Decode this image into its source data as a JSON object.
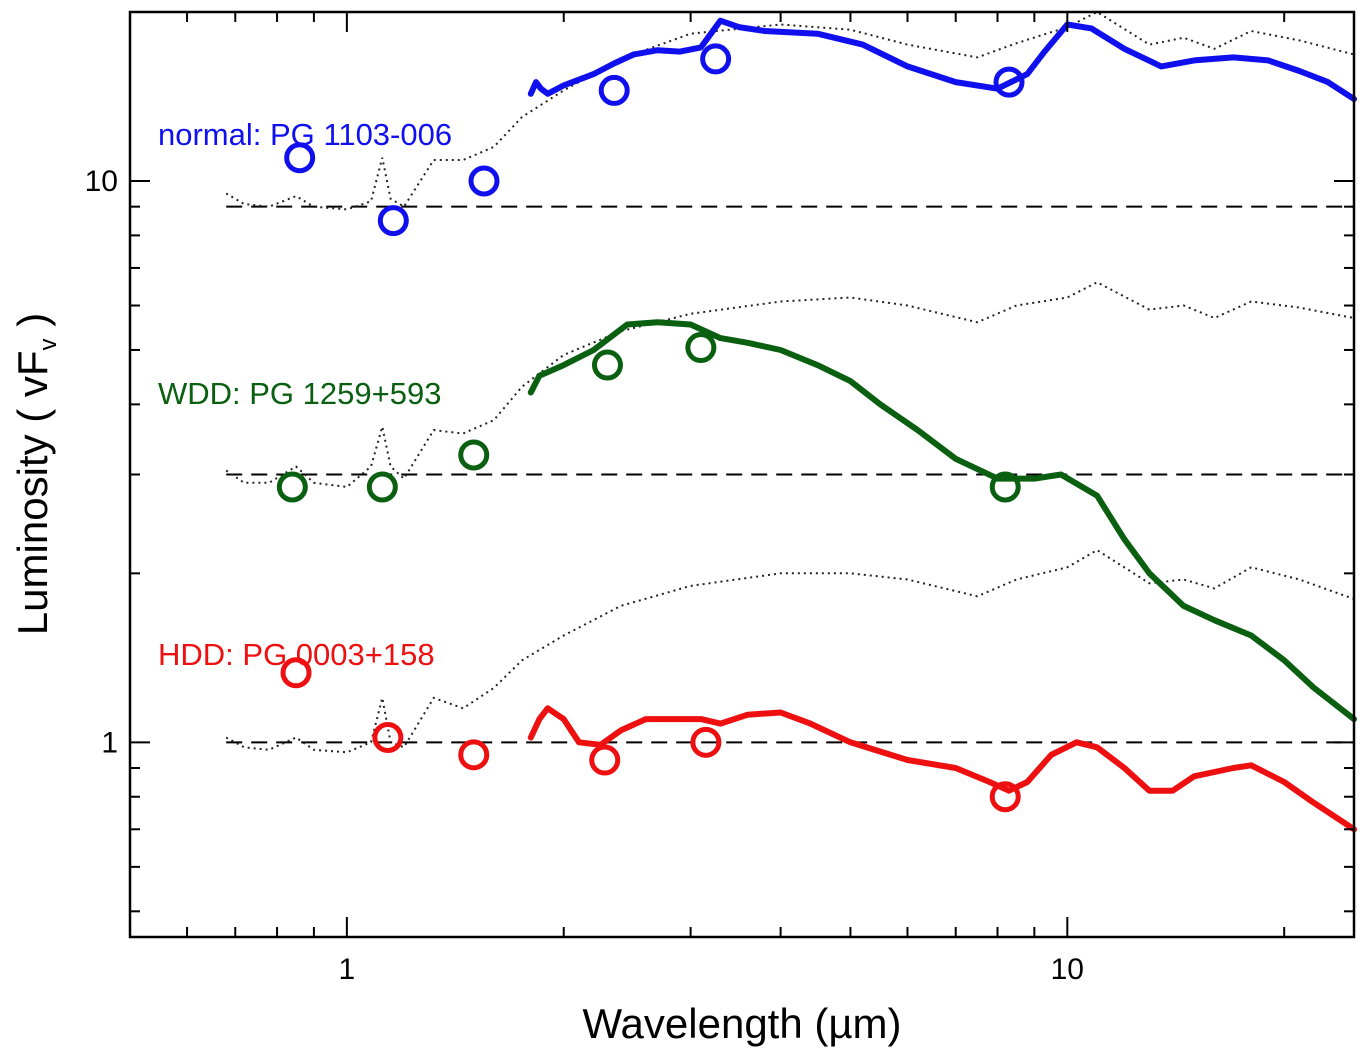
{
  "chart_data": {
    "type": "line",
    "xscale": "log",
    "yscale": "log",
    "xlim": [
      0.5,
      25
    ],
    "ylim": [
      0.45,
      20
    ],
    "xlabel": "Wavelength (µm)",
    "ylabel_main": "Luminosity ( vF",
    "ylabel_sub": "v",
    "ylabel_close": " )",
    "x_ticks": [
      {
        "value": 1,
        "label": "1"
      },
      {
        "value": 10,
        "label": "10"
      }
    ],
    "y_ticks": [
      {
        "value": 1,
        "label": "1"
      },
      {
        "value": 10,
        "label": "10"
      }
    ],
    "series": [
      {
        "name": "normal: PG 1103-006",
        "color": "#1010ee",
        "reference_level": 9.0,
        "photometry": [
          [
            0.86,
            11.0
          ],
          [
            1.16,
            8.5
          ],
          [
            1.55,
            10.0
          ],
          [
            2.35,
            14.5
          ],
          [
            3.25,
            16.5
          ],
          [
            8.3,
            15.0
          ]
        ],
        "spectrum": [
          [
            1.8,
            14.3
          ],
          [
            1.83,
            15.0
          ],
          [
            1.86,
            14.6
          ],
          [
            1.9,
            14.3
          ],
          [
            2.0,
            14.8
          ],
          [
            2.2,
            15.5
          ],
          [
            2.35,
            16.2
          ],
          [
            2.5,
            16.8
          ],
          [
            2.7,
            17.1
          ],
          [
            2.9,
            17.0
          ],
          [
            3.1,
            17.3
          ],
          [
            3.3,
            19.3
          ],
          [
            3.5,
            18.8
          ],
          [
            3.8,
            18.5
          ],
          [
            4.5,
            18.3
          ],
          [
            5.2,
            17.5
          ],
          [
            6.0,
            16.0
          ],
          [
            7.0,
            15.0
          ],
          [
            8.0,
            14.6
          ],
          [
            8.8,
            15.5
          ],
          [
            9.3,
            17.0
          ],
          [
            10.0,
            19.0
          ],
          [
            10.8,
            18.7
          ],
          [
            12.0,
            17.2
          ],
          [
            13.5,
            16.0
          ],
          [
            15.0,
            16.4
          ],
          [
            17.0,
            16.6
          ],
          [
            19.0,
            16.4
          ],
          [
            21.0,
            15.7
          ],
          [
            23.0,
            15.0
          ],
          [
            25.0,
            14.0
          ]
        ],
        "template": [
          [
            0.68,
            9.5
          ],
          [
            0.72,
            9.1
          ],
          [
            0.78,
            9.0
          ],
          [
            0.85,
            9.4
          ],
          [
            0.9,
            9.0
          ],
          [
            1.0,
            8.9
          ],
          [
            1.08,
            9.2
          ],
          [
            1.12,
            11.0
          ],
          [
            1.15,
            9.3
          ],
          [
            1.2,
            9.0
          ],
          [
            1.32,
            10.9
          ],
          [
            1.45,
            10.9
          ],
          [
            1.6,
            11.5
          ],
          [
            1.75,
            13.0
          ],
          [
            2.0,
            14.5
          ],
          [
            2.4,
            16.5
          ],
          [
            3.0,
            18.3
          ],
          [
            4.0,
            19.0
          ],
          [
            5.0,
            18.6
          ],
          [
            6.0,
            17.5
          ],
          [
            7.5,
            16.6
          ],
          [
            8.5,
            17.6
          ],
          [
            10.0,
            18.8
          ],
          [
            11.0,
            20.0
          ],
          [
            13.0,
            17.5
          ],
          [
            14.5,
            18.0
          ],
          [
            16.0,
            17.2
          ],
          [
            18.0,
            18.5
          ],
          [
            21.0,
            17.8
          ],
          [
            25.0,
            16.8
          ]
        ]
      },
      {
        "name": "WDD: PG 1259+593",
        "color": "#0a6010",
        "reference_level": 3.0,
        "photometry": [
          [
            0.84,
            2.85
          ],
          [
            1.12,
            2.85
          ],
          [
            1.5,
            3.25
          ],
          [
            2.3,
            4.7
          ],
          [
            3.1,
            5.05
          ],
          [
            8.2,
            2.85
          ]
        ],
        "spectrum": [
          [
            1.8,
            4.2
          ],
          [
            1.85,
            4.5
          ],
          [
            2.0,
            4.7
          ],
          [
            2.2,
            5.0
          ],
          [
            2.45,
            5.55
          ],
          [
            2.7,
            5.6
          ],
          [
            3.0,
            5.55
          ],
          [
            3.3,
            5.25
          ],
          [
            3.6,
            5.15
          ],
          [
            4.0,
            5.0
          ],
          [
            4.5,
            4.7
          ],
          [
            5.0,
            4.4
          ],
          [
            5.5,
            4.0
          ],
          [
            6.2,
            3.6
          ],
          [
            7.0,
            3.2
          ],
          [
            8.0,
            2.95
          ],
          [
            9.0,
            2.95
          ],
          [
            9.8,
            3.0
          ],
          [
            11.0,
            2.75
          ],
          [
            12.0,
            2.3
          ],
          [
            13.0,
            2.0
          ],
          [
            14.5,
            1.75
          ],
          [
            16.0,
            1.65
          ],
          [
            18.0,
            1.55
          ],
          [
            20.0,
            1.4
          ],
          [
            22.0,
            1.25
          ],
          [
            25.0,
            1.1
          ]
        ],
        "template": [
          [
            0.68,
            3.05
          ],
          [
            0.72,
            2.9
          ],
          [
            0.78,
            2.9
          ],
          [
            0.85,
            3.1
          ],
          [
            0.9,
            2.9
          ],
          [
            1.0,
            2.85
          ],
          [
            1.08,
            3.1
          ],
          [
            1.12,
            3.65
          ],
          [
            1.15,
            3.1
          ],
          [
            1.2,
            2.95
          ],
          [
            1.32,
            3.6
          ],
          [
            1.45,
            3.55
          ],
          [
            1.6,
            3.75
          ],
          [
            1.75,
            4.3
          ],
          [
            2.0,
            4.9
          ],
          [
            2.4,
            5.4
          ],
          [
            3.0,
            5.8
          ],
          [
            4.0,
            6.1
          ],
          [
            5.0,
            6.2
          ],
          [
            6.0,
            6.0
          ],
          [
            7.5,
            5.6
          ],
          [
            8.5,
            6.0
          ],
          [
            10.0,
            6.2
          ],
          [
            11.0,
            6.6
          ],
          [
            13.0,
            5.9
          ],
          [
            14.5,
            6.0
          ],
          [
            16.0,
            5.7
          ],
          [
            18.0,
            6.1
          ],
          [
            21.0,
            5.95
          ],
          [
            25.0,
            5.7
          ]
        ]
      },
      {
        "name": "HDD: PG 0003+158",
        "color": "#ee1010",
        "reference_level": 1.0,
        "photometry": [
          [
            0.85,
            1.33
          ],
          [
            1.14,
            1.02
          ],
          [
            1.5,
            0.95
          ],
          [
            2.28,
            0.93
          ],
          [
            3.15,
            1.0
          ],
          [
            8.2,
            0.8
          ]
        ],
        "spectrum": [
          [
            1.8,
            1.02
          ],
          [
            1.85,
            1.1
          ],
          [
            1.9,
            1.15
          ],
          [
            2.0,
            1.1
          ],
          [
            2.1,
            1.0
          ],
          [
            2.25,
            0.99
          ],
          [
            2.4,
            1.05
          ],
          [
            2.6,
            1.1
          ],
          [
            2.9,
            1.1
          ],
          [
            3.1,
            1.1
          ],
          [
            3.3,
            1.08
          ],
          [
            3.6,
            1.12
          ],
          [
            4.0,
            1.13
          ],
          [
            4.4,
            1.08
          ],
          [
            5.0,
            1.0
          ],
          [
            6.0,
            0.93
          ],
          [
            7.0,
            0.9
          ],
          [
            7.8,
            0.85
          ],
          [
            8.3,
            0.82
          ],
          [
            8.8,
            0.85
          ],
          [
            9.5,
            0.95
          ],
          [
            10.3,
            1.0
          ],
          [
            11.0,
            0.98
          ],
          [
            12.0,
            0.9
          ],
          [
            13.0,
            0.82
          ],
          [
            14.0,
            0.82
          ],
          [
            15.0,
            0.87
          ],
          [
            17.0,
            0.9
          ],
          [
            18.0,
            0.91
          ],
          [
            20.0,
            0.85
          ],
          [
            22.0,
            0.78
          ],
          [
            25.0,
            0.7
          ]
        ],
        "template": [
          [
            0.68,
            1.02
          ],
          [
            0.72,
            0.98
          ],
          [
            0.78,
            0.97
          ],
          [
            0.85,
            1.02
          ],
          [
            0.9,
            0.97
          ],
          [
            1.0,
            0.96
          ],
          [
            1.08,
            1.0
          ],
          [
            1.12,
            1.2
          ],
          [
            1.15,
            1.0
          ],
          [
            1.2,
            0.98
          ],
          [
            1.32,
            1.2
          ],
          [
            1.45,
            1.15
          ],
          [
            1.6,
            1.25
          ],
          [
            1.75,
            1.4
          ],
          [
            2.0,
            1.55
          ],
          [
            2.4,
            1.75
          ],
          [
            3.0,
            1.9
          ],
          [
            4.0,
            2.0
          ],
          [
            5.0,
            2.0
          ],
          [
            6.0,
            1.95
          ],
          [
            7.5,
            1.82
          ],
          [
            8.5,
            1.95
          ],
          [
            10.0,
            2.05
          ],
          [
            11.0,
            2.2
          ],
          [
            13.0,
            1.92
          ],
          [
            14.5,
            1.95
          ],
          [
            16.0,
            1.88
          ],
          [
            18.0,
            2.05
          ],
          [
            21.0,
            1.95
          ],
          [
            25.0,
            1.8
          ]
        ]
      }
    ]
  }
}
